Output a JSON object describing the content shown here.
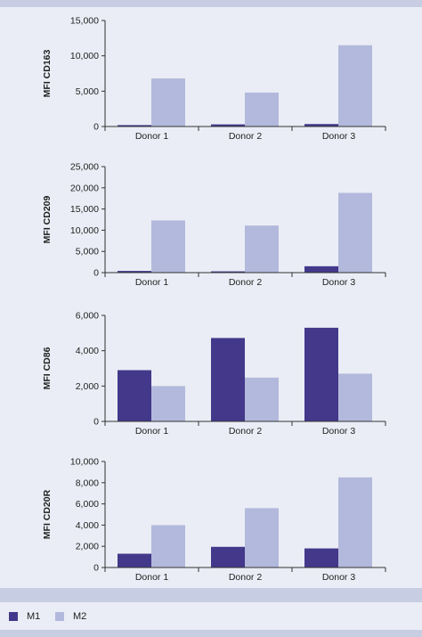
{
  "colors": {
    "M1": "#43388a",
    "M2": "#b3b9dc"
  },
  "legend": [
    {
      "name": "M1",
      "color": "#43388a"
    },
    {
      "name": "M2",
      "color": "#b3b9dc"
    }
  ],
  "chart_data": [
    {
      "type": "bar",
      "ylabel": "MFI CD163",
      "categories": [
        "Donor 1",
        "Donor 2",
        "Donor 3"
      ],
      "yticks": [
        "0",
        "5,000",
        "10,000",
        "15,000"
      ],
      "ylim": [
        0,
        15000
      ],
      "series": [
        {
          "name": "M1",
          "values": [
            200,
            300,
            350
          ]
        },
        {
          "name": "M2",
          "values": [
            6800,
            4800,
            11500
          ]
        }
      ]
    },
    {
      "type": "bar",
      "ylabel": "MFI CD209",
      "categories": [
        "Donor 1",
        "Donor 2",
        "Donor 3"
      ],
      "yticks": [
        "0",
        "5,000",
        "10,000",
        "15,000",
        "20,000",
        "25,000"
      ],
      "ylim": [
        0,
        25000
      ],
      "series": [
        {
          "name": "M1",
          "values": [
            400,
            300,
            1500
          ]
        },
        {
          "name": "M2",
          "values": [
            12300,
            11100,
            18800
          ]
        }
      ]
    },
    {
      "type": "bar",
      "ylabel": "MFI CD86",
      "categories": [
        "Donor 1",
        "Donor 2",
        "Donor 3"
      ],
      "yticks": [
        "0",
        "2,000",
        "4,000",
        "6,000"
      ],
      "ylim": [
        0,
        6000
      ],
      "series": [
        {
          "name": "M1",
          "values": [
            2900,
            4720,
            5300
          ]
        },
        {
          "name": "M2",
          "values": [
            2000,
            2480,
            2700
          ]
        }
      ]
    },
    {
      "type": "bar",
      "ylabel": "MFI CD20R",
      "categories": [
        "Donor 1",
        "Donor 2",
        "Donor 3"
      ],
      "yticks": [
        "0",
        "2,000",
        "4,000",
        "6,000",
        "8,000",
        "10,000"
      ],
      "ylim": [
        0,
        10000
      ],
      "series": [
        {
          "name": "M1",
          "values": [
            1300,
            1950,
            1800
          ]
        },
        {
          "name": "M2",
          "values": [
            4000,
            5600,
            8500
          ]
        }
      ]
    }
  ]
}
